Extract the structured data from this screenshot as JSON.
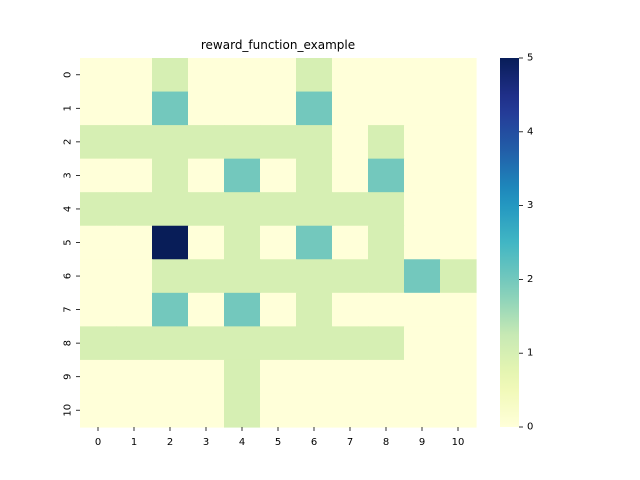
{
  "chart_data": {
    "type": "heatmap",
    "title": "reward_function_example",
    "xlabel": "",
    "ylabel": "",
    "x_categories": [
      "0",
      "1",
      "2",
      "3",
      "4",
      "5",
      "6",
      "7",
      "8",
      "9",
      "10"
    ],
    "y_categories": [
      "0",
      "1",
      "2",
      "3",
      "4",
      "5",
      "6",
      "7",
      "8",
      "9",
      "10"
    ],
    "values": [
      [
        0,
        0,
        1,
        0,
        0,
        0,
        1,
        0,
        0,
        0,
        0
      ],
      [
        0,
        0,
        2,
        0,
        0,
        0,
        2,
        0,
        0,
        0,
        0
      ],
      [
        1,
        1,
        1,
        1,
        1,
        1,
        1,
        0,
        1,
        0,
        0
      ],
      [
        0,
        0,
        1,
        0,
        2,
        0,
        1,
        0,
        2,
        0,
        0
      ],
      [
        1,
        1,
        1,
        1,
        1,
        1,
        1,
        1,
        1,
        0,
        0
      ],
      [
        0,
        0,
        5,
        0,
        1,
        0,
        2,
        0,
        1,
        0,
        0
      ],
      [
        0,
        0,
        1,
        1,
        1,
        1,
        1,
        1,
        1,
        2,
        1
      ],
      [
        0,
        0,
        2,
        0,
        2,
        0,
        1,
        0,
        0,
        0,
        0
      ],
      [
        1,
        1,
        1,
        1,
        1,
        1,
        1,
        1,
        1,
        0,
        0
      ],
      [
        0,
        0,
        0,
        0,
        1,
        0,
        0,
        0,
        0,
        0,
        0
      ],
      [
        0,
        0,
        0,
        0,
        1,
        0,
        0,
        0,
        0,
        0,
        0
      ]
    ],
    "colorbar": {
      "vmin": 0,
      "vmax": 5,
      "ticks": [
        "0",
        "1",
        "2",
        "3",
        "4",
        "5"
      ],
      "colormap": "YlGnBu"
    },
    "colors": {
      "0": "#ffffd9",
      "1": "#d4eeb3",
      "2": "#7ecdbb",
      "5": "#081d58"
    },
    "grid": false,
    "legend": "colorbar-right"
  }
}
